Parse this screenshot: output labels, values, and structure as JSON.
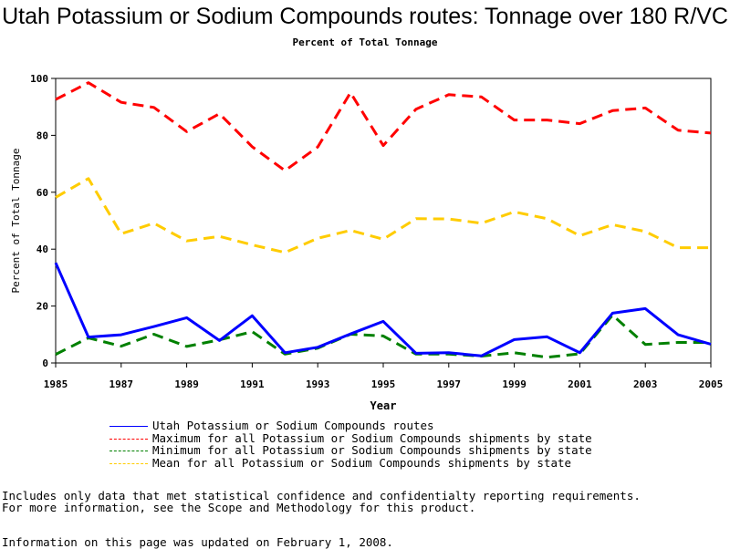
{
  "chart_data": {
    "type": "line",
    "title": "Utah Potassium or Sodium Compounds routes: Tonnage over 180 R/VC",
    "subtitle": "Percent of Total Tonnage",
    "xlabel": "Year",
    "ylabel": "Percent of Total Tonnage",
    "xlim": [
      1985,
      2005
    ],
    "ylim": [
      0,
      100
    ],
    "xticks": [
      "1985",
      "1987",
      "1989",
      "1991",
      "1993",
      "1995",
      "1997",
      "1999",
      "2001",
      "2003",
      "2005"
    ],
    "yticks": [
      "0",
      "20",
      "40",
      "60",
      "80",
      "100"
    ],
    "x": [
      1985,
      1986,
      1987,
      1988,
      1989,
      1990,
      1991,
      1992,
      1993,
      1994,
      1995,
      1996,
      1997,
      1998,
      1999,
      2000,
      2001,
      2002,
      2003,
      2004,
      2005
    ],
    "series": [
      {
        "name": "Utah Potassium or Sodium Compounds routes",
        "color": "#0000ff",
        "style": "solid",
        "values": [
          35.2,
          9.1,
          9.9,
          12.8,
          15.9,
          7.9,
          16.6,
          3.6,
          5.5,
          10.2,
          14.6,
          3.4,
          3.6,
          2.5,
          8.2,
          9.2,
          3.6,
          17.5,
          19.1,
          9.9,
          6.6
        ]
      },
      {
        "name": "Maximum for all Potassium or Sodium Compounds shipments by state",
        "color": "#ff0000",
        "style": "dashed",
        "values": [
          92.6,
          98.5,
          91.6,
          89.8,
          81.3,
          87.6,
          76.0,
          67.6,
          75.9,
          95.0,
          76.4,
          89.2,
          94.3,
          93.5,
          85.4,
          85.4,
          84.1,
          88.7,
          89.6,
          81.8,
          80.8
        ]
      },
      {
        "name": "Minimum for all Potassium or Sodium Compounds shipments by state",
        "color": "#008000",
        "style": "dashed",
        "values": [
          3.0,
          8.8,
          5.9,
          10.1,
          5.8,
          8.1,
          11.0,
          3.1,
          5.2,
          10.1,
          9.5,
          3.1,
          3.1,
          2.4,
          3.6,
          2.0,
          3.2,
          16.8,
          6.5,
          7.2,
          7.2
        ]
      },
      {
        "name": "Mean for all Potassium or Sodium Compounds shipments by state",
        "color": "#ffcc00",
        "style": "dashed",
        "values": [
          58.2,
          64.8,
          45.4,
          49.1,
          42.9,
          44.5,
          41.5,
          38.8,
          43.8,
          46.6,
          43.5,
          50.7,
          50.6,
          49.1,
          53.1,
          50.7,
          44.7,
          48.6,
          46.2,
          40.5,
          40.5
        ]
      }
    ]
  },
  "notes": {
    "line1": "Includes only data that met statistical confidence and confidentialty reporting requirements.",
    "line2": "For more information, see the Scope and Methodology for this product.",
    "line3": "Information on this page was updated on February 1, 2008."
  }
}
